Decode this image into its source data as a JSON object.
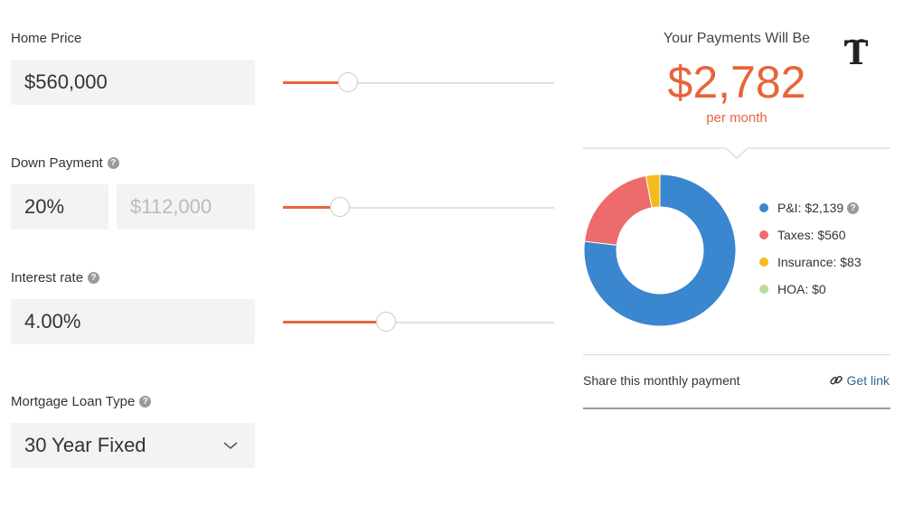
{
  "home_price": {
    "label": "Home Price",
    "value": "$560,000",
    "slider_fraction": 0.24
  },
  "down_payment": {
    "label": "Down Payment",
    "percent": "20%",
    "amount": "$112,000",
    "slider_fraction": 0.21
  },
  "interest_rate": {
    "label": "Interest rate",
    "value": "4.00%",
    "slider_fraction": 0.38
  },
  "loan_type": {
    "label": "Mortgage Loan Type",
    "value": "30 Year Fixed"
  },
  "payment": {
    "heading": "Your Payments Will Be",
    "amount": "$2,782",
    "period": "per month"
  },
  "breakdown": [
    {
      "label": "P&I: $2,139",
      "value": 2139,
      "color": "#3a86cf",
      "help": true
    },
    {
      "label": "Taxes: $560",
      "value": 560,
      "color": "#ee6b6b",
      "help": false
    },
    {
      "label": "Insurance: $83",
      "value": 83,
      "color": "#f5bb1c",
      "help": false
    },
    {
      "label": "HOA: $0",
      "value": 0,
      "color": "#bddb9f",
      "help": false
    }
  ],
  "share": {
    "text": "Share this monthly payment",
    "link": "Get link"
  },
  "colors": {
    "accent": "#e8643c",
    "link": "#326891"
  },
  "icons": {
    "logo": "nyt-logo-icon",
    "help": "help-icon",
    "chevron": "chevron-down-icon",
    "link": "link-icon"
  }
}
